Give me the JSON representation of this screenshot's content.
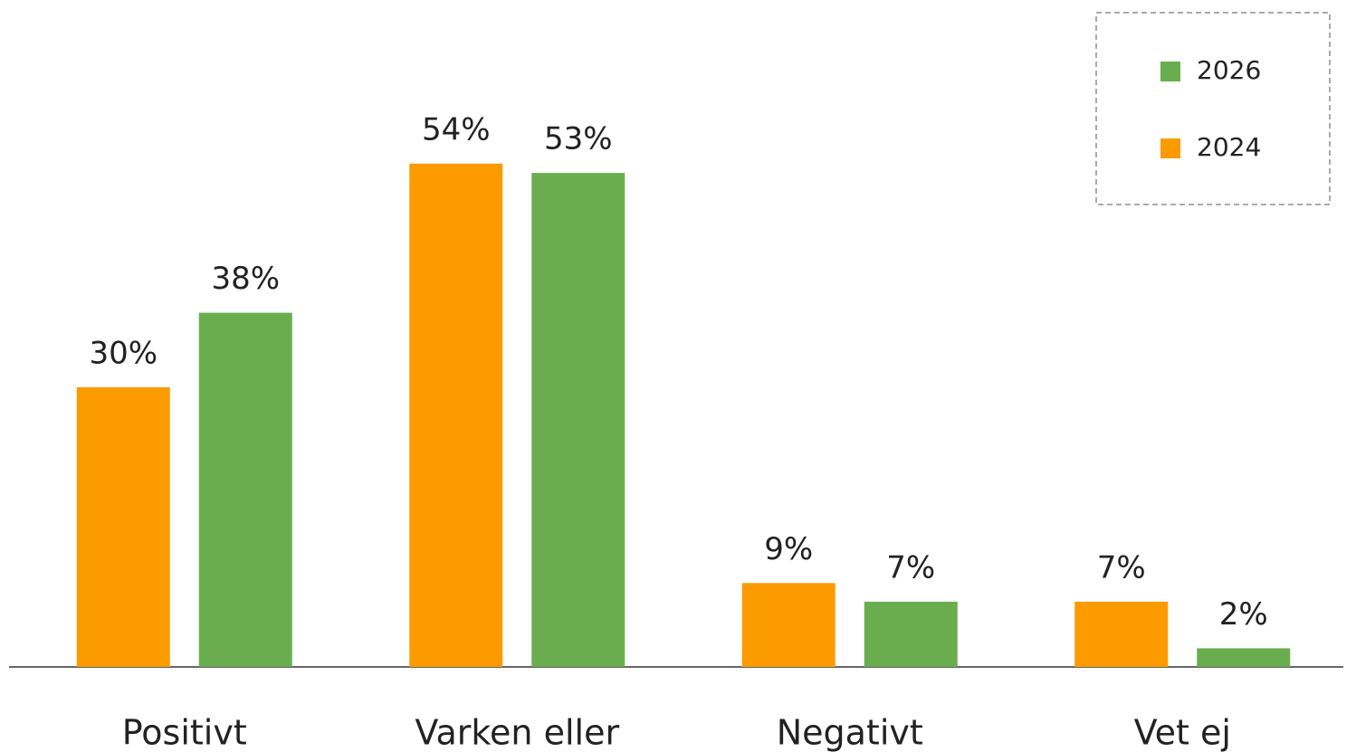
{
  "chart_data": {
    "type": "bar",
    "categories": [
      "Positivt",
      "Varken eller",
      "Negativt",
      "Vet ej"
    ],
    "series": [
      {
        "name": "2024",
        "color": "#fb9b00",
        "values": [
          30,
          54,
          9,
          7
        ],
        "value_labels": [
          "30%",
          "54%",
          "9%",
          "7%"
        ]
      },
      {
        "name": "2026",
        "color": "#6aad4e",
        "values": [
          38,
          53,
          7,
          2
        ],
        "value_labels": [
          "38%",
          "53%",
          "7%",
          "2%"
        ]
      }
    ],
    "ylim": [
      0,
      60
    ],
    "legend": "upper right"
  }
}
